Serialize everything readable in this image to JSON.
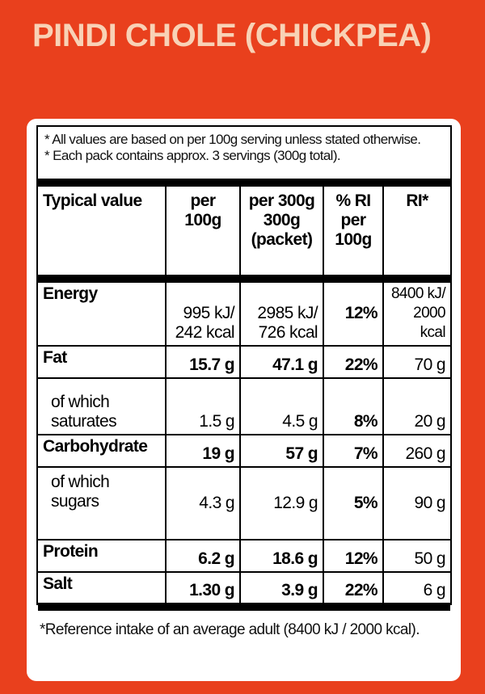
{
  "header": {
    "title": "PINDI CHOLE (CHICKPEA)"
  },
  "notes": [
    "* All values are based on per 100g serving unless stated otherwise.",
    "* Each pack contains approx. 3 servings (300g total)."
  ],
  "table": {
    "header": [
      "Typical value",
      "per\n100g",
      "per 300g\n300g\n(packet)",
      "% RI\nper\n100g",
      "RI*"
    ],
    "rows": [
      [
        "Energy",
        "995 kJ/\n242 kcal",
        "2985 kJ/\n726 kcal",
        "12%",
        "8400 kJ/\n2000 kcal"
      ],
      [
        "Fat",
        "15.7 g",
        "47.1 g",
        "22%",
        "70 g"
      ],
      [
        "of which\nsaturates",
        "1.5 g",
        "4.5 g",
        "8%",
        "20 g"
      ],
      [
        "Carbohydrate",
        "19 g",
        "57 g",
        "7%",
        "260 g"
      ],
      [
        "of which\nsugars",
        "4.3 g",
        "12.9 g",
        "5%",
        "90 g"
      ],
      [
        "Protein",
        "6.2 g",
        "18.6 g",
        "12%",
        "50 g"
      ],
      [
        "Salt",
        "1.30 g",
        "3.9 g",
        "22%",
        "6 g"
      ]
    ]
  },
  "footnote": "*Reference intake of an average adult (8400 kJ / 2000 kcal)."
}
